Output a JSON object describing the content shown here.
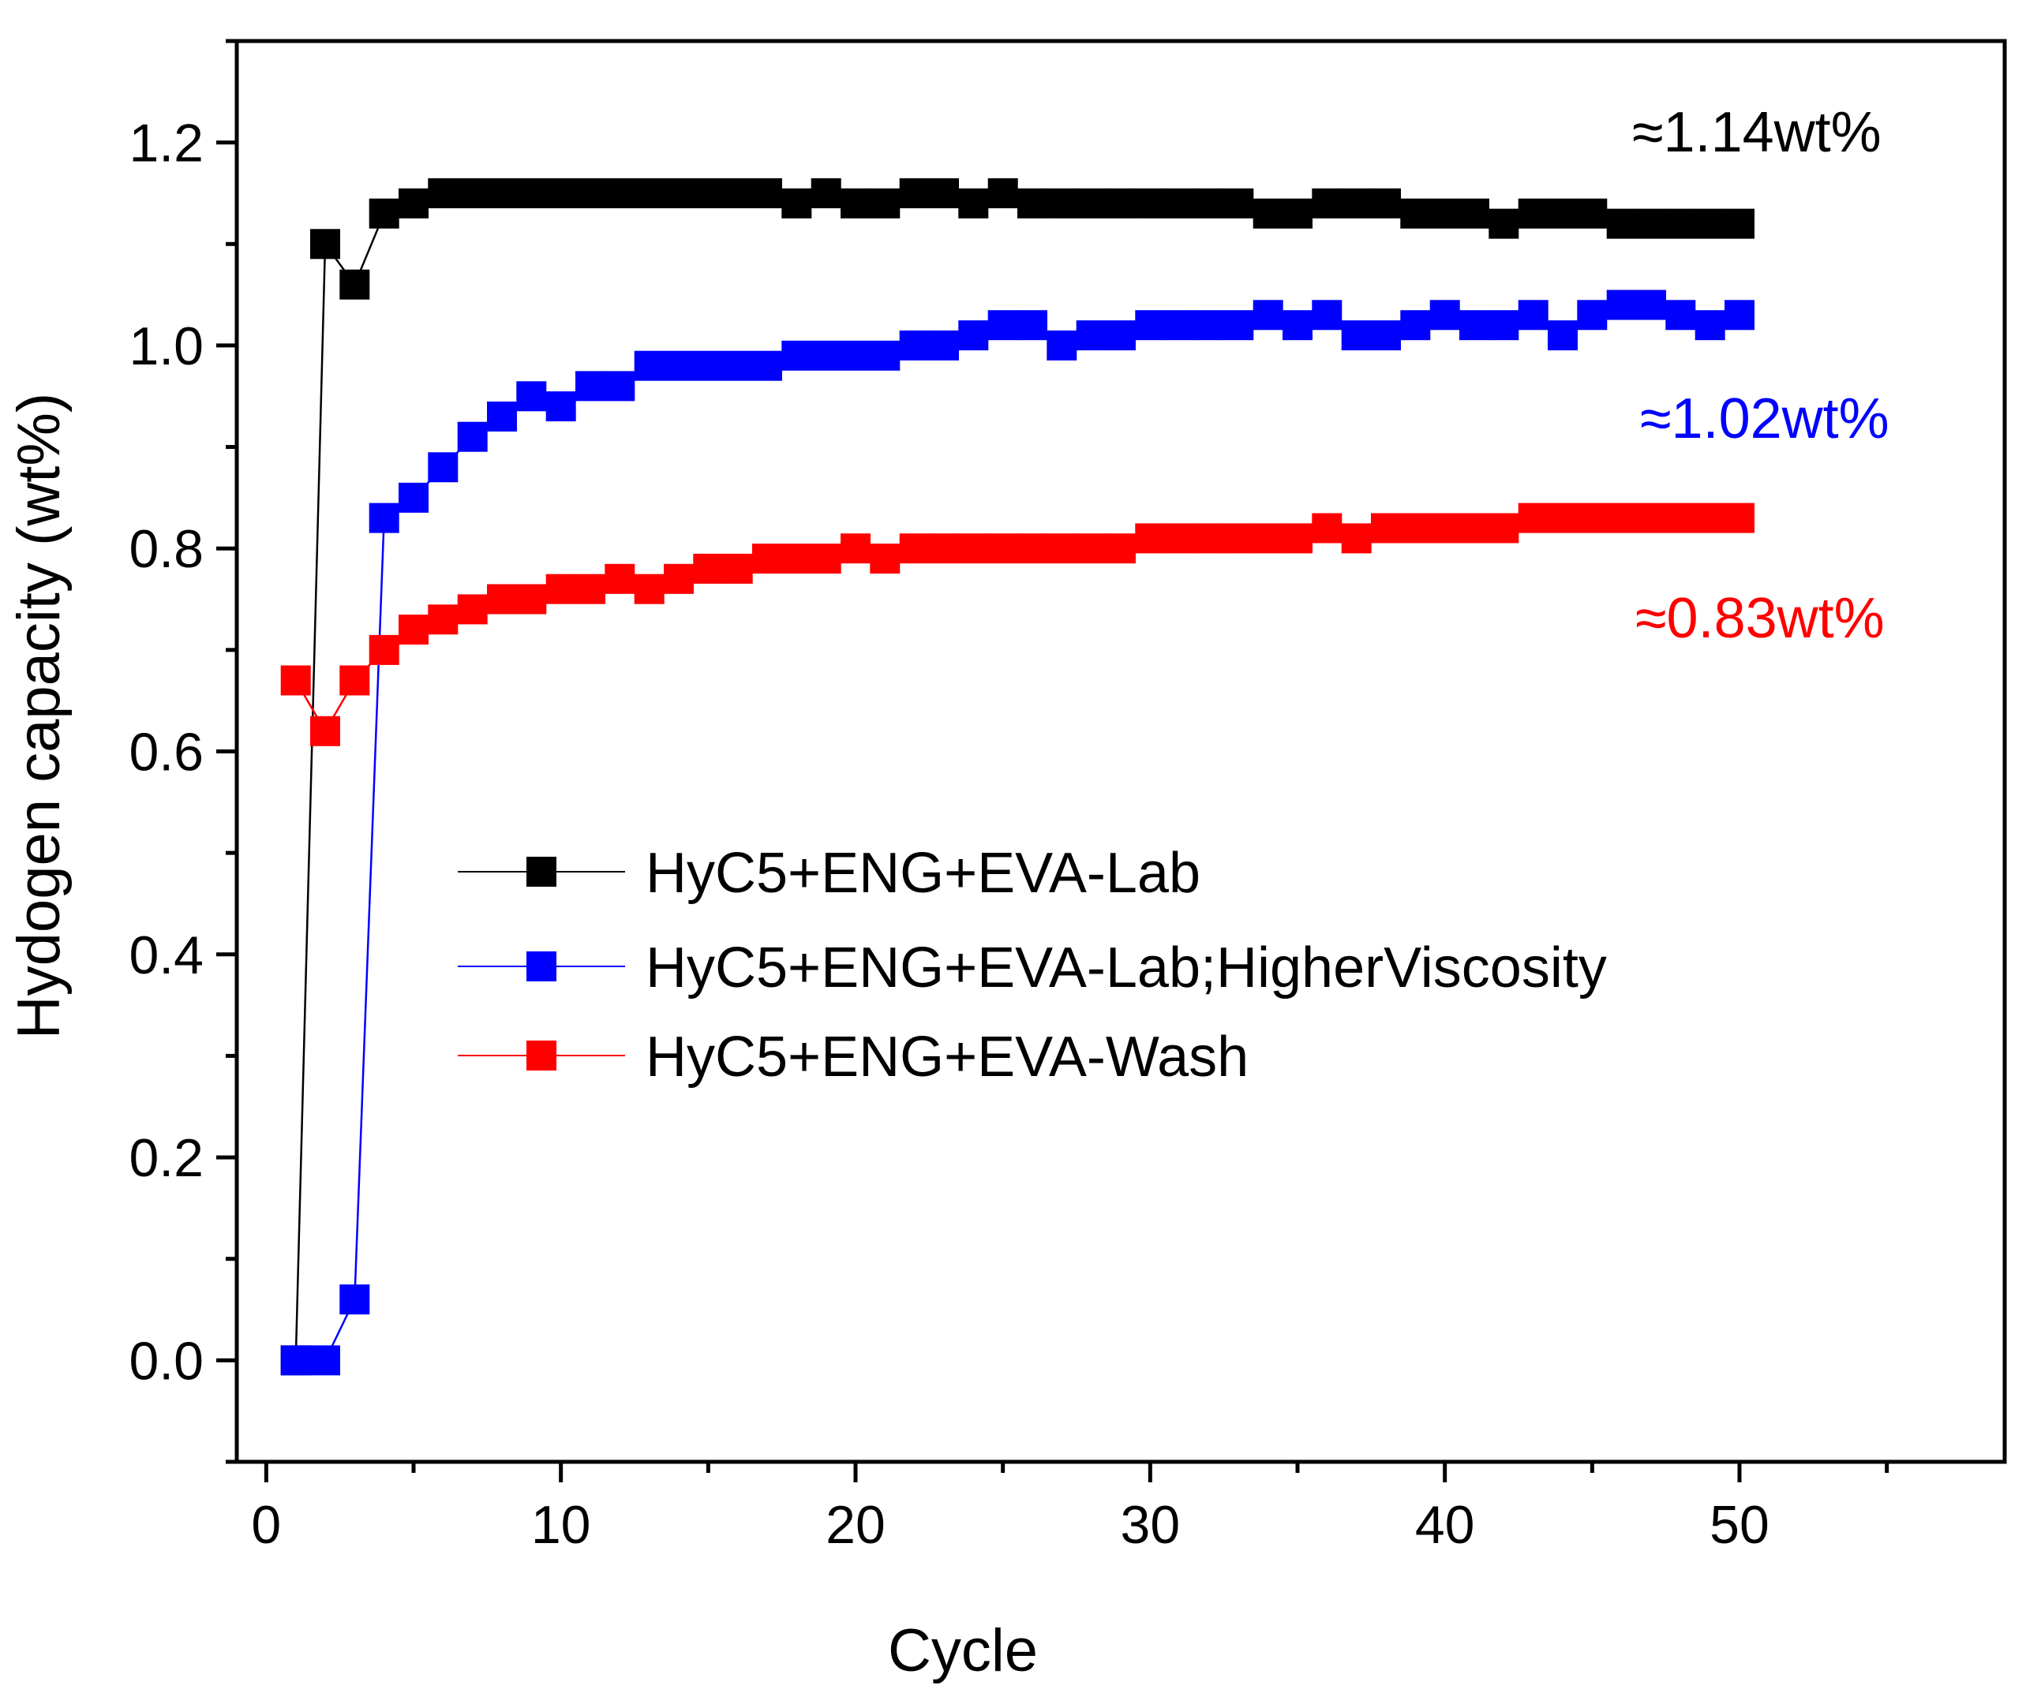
{
  "chart_data": {
    "type": "line",
    "xlabel": "Cycle",
    "ylabel": "Hydogen capacity (wt%)",
    "xlim": [
      -1,
      59
    ],
    "ylim": [
      -0.1,
      1.3
    ],
    "x_ticks": [
      0,
      10,
      20,
      30,
      40,
      50
    ],
    "y_ticks": [
      0.0,
      0.2,
      0.4,
      0.6,
      0.8,
      1.0,
      1.2
    ],
    "x_tick_labels": [
      "0",
      "10",
      "20",
      "30",
      "40",
      "50"
    ],
    "y_tick_labels": [
      "0.0",
      "0.2",
      "0.4",
      "0.6",
      "0.8",
      "1.0",
      "1.2"
    ],
    "grid": false,
    "legend_position": "center-right",
    "x": [
      1,
      2,
      3,
      4,
      5,
      6,
      7,
      8,
      9,
      10,
      11,
      12,
      13,
      14,
      15,
      16,
      17,
      18,
      19,
      20,
      21,
      22,
      23,
      24,
      25,
      26,
      27,
      28,
      29,
      30,
      31,
      32,
      33,
      34,
      35,
      36,
      37,
      38,
      39,
      40,
      41,
      42,
      43,
      44,
      45,
      46,
      47,
      48,
      49,
      50
    ],
    "series": [
      {
        "name": "HyC5+ENG+EVA-Lab",
        "color": "#000000",
        "values": [
          0.0,
          1.1,
          1.06,
          1.13,
          1.14,
          1.15,
          1.15,
          1.15,
          1.15,
          1.15,
          1.15,
          1.15,
          1.15,
          1.15,
          1.15,
          1.15,
          1.15,
          1.14,
          1.15,
          1.14,
          1.14,
          1.15,
          1.15,
          1.14,
          1.15,
          1.14,
          1.14,
          1.14,
          1.14,
          1.14,
          1.14,
          1.14,
          1.14,
          1.13,
          1.13,
          1.14,
          1.14,
          1.14,
          1.13,
          1.13,
          1.13,
          1.12,
          1.13,
          1.13,
          1.13,
          1.12,
          1.12,
          1.12,
          1.12,
          1.12
        ]
      },
      {
        "name": "HyC5+ENG+EVA-Lab;HigherViscosity",
        "color": "#0000ff",
        "values": [
          0.0,
          0.0,
          0.06,
          0.83,
          0.85,
          0.88,
          0.91,
          0.93,
          0.95,
          0.94,
          0.96,
          0.96,
          0.98,
          0.98,
          0.98,
          0.98,
          0.98,
          0.99,
          0.99,
          0.99,
          0.99,
          1.0,
          1.0,
          1.01,
          1.02,
          1.02,
          1.0,
          1.01,
          1.01,
          1.02,
          1.02,
          1.02,
          1.02,
          1.03,
          1.02,
          1.03,
          1.01,
          1.01,
          1.02,
          1.03,
          1.02,
          1.02,
          1.03,
          1.01,
          1.03,
          1.04,
          1.04,
          1.03,
          1.02,
          1.03
        ]
      },
      {
        "name": "HyC5+ENG+EVA-Wash",
        "color": "#ff0000",
        "values": [
          0.67,
          0.62,
          0.67,
          0.7,
          0.72,
          0.73,
          0.74,
          0.75,
          0.75,
          0.76,
          0.76,
          0.77,
          0.76,
          0.77,
          0.78,
          0.78,
          0.79,
          0.79,
          0.79,
          0.8,
          0.79,
          0.8,
          0.8,
          0.8,
          0.8,
          0.8,
          0.8,
          0.8,
          0.8,
          0.81,
          0.81,
          0.81,
          0.81,
          0.81,
          0.81,
          0.82,
          0.81,
          0.82,
          0.82,
          0.82,
          0.82,
          0.82,
          0.83,
          0.83,
          0.83,
          0.83,
          0.83,
          0.83,
          0.83,
          0.83
        ]
      }
    ],
    "annotations": [
      {
        "text": "≈1.14wt%",
        "color": "#000000"
      },
      {
        "text": "≈1.02wt%",
        "color": "#0000ff"
      },
      {
        "text": "≈0.83wt%",
        "color": "#ff0000"
      }
    ]
  }
}
